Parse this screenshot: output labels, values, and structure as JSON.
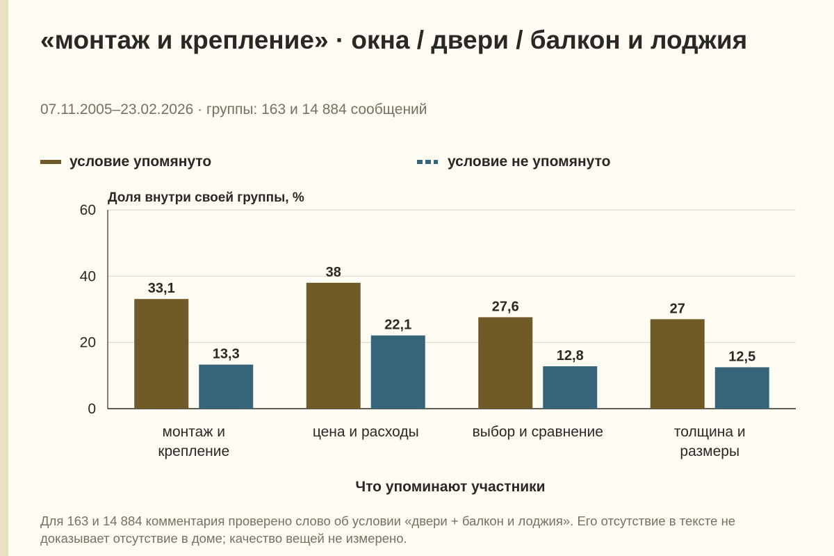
{
  "title": "«монтаж и крепление» · окна / двери / балкон и лоджия",
  "subtitle": "07.11.2005–23.02.2026 · группы: 163 и 14 884 сообщений",
  "footnote": "Для 163 и 14 884 комментария проверено слово об условии «двери + балкон и лоджия». Его отсутствие в тексте не доказывает отсутствие в доме; качество вещей не измерено.",
  "colors": {
    "series1": "#705a27",
    "series2": "#36657a",
    "grid": "#d6d2c6",
    "axis": "#2a2824"
  },
  "chart_data": {
    "type": "bar",
    "categories": [
      [
        "монтаж и",
        "крепление"
      ],
      [
        "цена и расходы"
      ],
      [
        "выбор и сравнение"
      ],
      [
        "толщина и",
        "размеры"
      ]
    ],
    "series": [
      {
        "name": "условие упомянуто",
        "values": [
          33.1,
          38,
          27.6,
          27
        ],
        "labels": [
          "33,1",
          "38",
          "27,6",
          "27"
        ]
      },
      {
        "name": "условие не упомянуто",
        "values": [
          13.3,
          22.1,
          12.8,
          12.5
        ],
        "labels": [
          "13,3",
          "22,1",
          "12,8",
          "12,5"
        ]
      }
    ],
    "ylabel": "Доля внутри своей группы, %",
    "xlabel": "Что упоминают участники",
    "ylim": [
      0,
      60
    ],
    "yticks": [
      "0",
      "20",
      "40",
      "60"
    ],
    "ytick_values": [
      0,
      20,
      40,
      60
    ],
    "grid": true,
    "legend": "top"
  }
}
